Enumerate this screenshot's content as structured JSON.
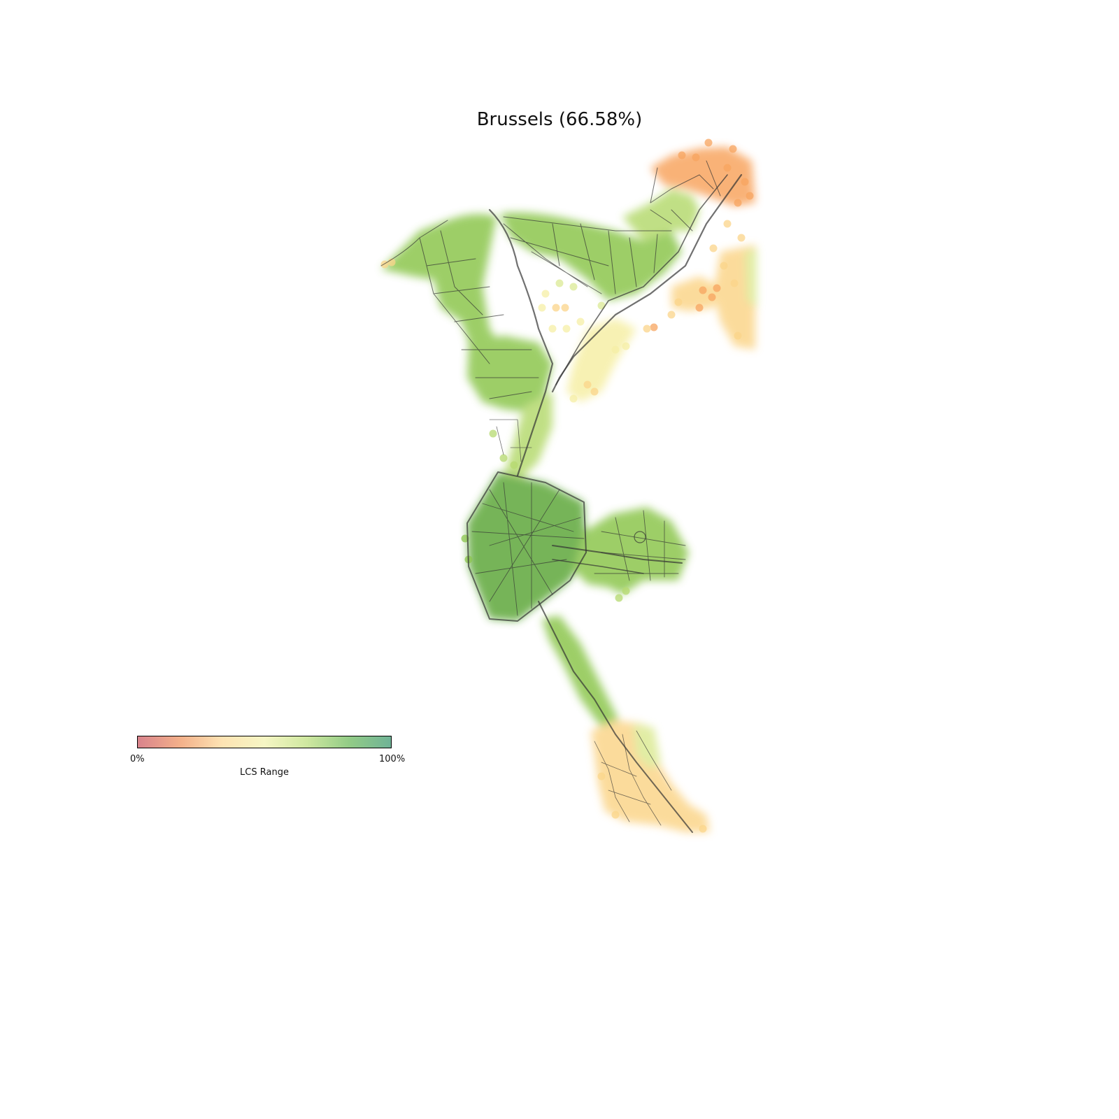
{
  "title": "Brussels (66.58%)",
  "legend": {
    "label": "LCS Range",
    "min_label": "0%",
    "max_label": "100%",
    "colors": [
      "#d9838c",
      "#f3b08a",
      "#fde3b3",
      "#f6f6c4",
      "#cfe8a0",
      "#93cc86",
      "#6fb396"
    ]
  },
  "map_colors": {
    "dark_green": "#5fa83a",
    "mid_green": "#8cc64e",
    "light_green": "#b6da70",
    "yellow_green": "#dcea95",
    "pale_yellow": "#f6efa6",
    "light_orange": "#fbd58a",
    "orange": "#f8a560",
    "road": "#333333"
  }
}
